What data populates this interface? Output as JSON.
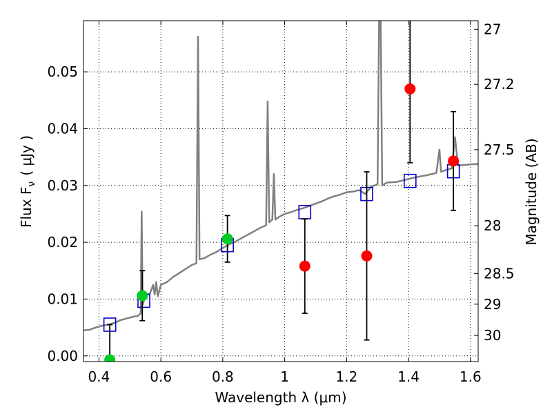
{
  "chart_data": {
    "type": "scatter",
    "xlabel": "Wavelength  λ (μm)",
    "ylabel": "Flux  F",
    "ylabel_sub": "ν",
    "ylabel_unit": "( μJy )",
    "y2label": "Magnitude (AB)",
    "xlim": [
      0.35,
      1.625
    ],
    "ylim": [
      -0.001,
      0.059
    ],
    "grid": true,
    "x_ticks": [
      0.4,
      0.6,
      0.8,
      1.0,
      1.2,
      1.4,
      1.6
    ],
    "x_tick_labels": [
      "0.4",
      "0.6",
      "0.8",
      "1",
      "1.2",
      "1.4",
      "1.6"
    ],
    "y_ticks": [
      0.0,
      0.01,
      0.02,
      0.03,
      0.04,
      0.05
    ],
    "y_tick_labels": [
      "0.00",
      "0.01",
      "0.02",
      "0.03",
      "0.04",
      "0.05"
    ],
    "y2_ticks": [
      {
        "label": "27",
        "flux": 0.0575
      },
      {
        "label": "27.2",
        "flux": 0.0478
      },
      {
        "label": "27.5",
        "flux": 0.0363
      },
      {
        "label": "28",
        "flux": 0.0229
      },
      {
        "label": "28.5",
        "flux": 0.0145
      },
      {
        "label": "29",
        "flux": 0.0091
      },
      {
        "label": "30",
        "flux": 0.0036
      }
    ],
    "template_spectrum": [
      [
        0.35,
        0.0045
      ],
      [
        0.37,
        0.0046
      ],
      [
        0.39,
        0.005
      ],
      [
        0.41,
        0.0053
      ],
      [
        0.43,
        0.0055
      ],
      [
        0.45,
        0.0058
      ],
      [
        0.47,
        0.0063
      ],
      [
        0.49,
        0.0066
      ],
      [
        0.51,
        0.0069
      ],
      [
        0.525,
        0.007
      ],
      [
        0.535,
        0.0075
      ],
      [
        0.538,
        0.0254
      ],
      [
        0.541,
        0.009
      ],
      [
        0.55,
        0.0105
      ],
      [
        0.565,
        0.011
      ],
      [
        0.575,
        0.0125
      ],
      [
        0.58,
        0.0108
      ],
      [
        0.585,
        0.013
      ],
      [
        0.59,
        0.0105
      ],
      [
        0.6,
        0.0125
      ],
      [
        0.62,
        0.013
      ],
      [
        0.64,
        0.0139
      ],
      [
        0.66,
        0.0146
      ],
      [
        0.68,
        0.0153
      ],
      [
        0.7,
        0.016
      ],
      [
        0.715,
        0.0163
      ],
      [
        0.72,
        0.0562
      ],
      [
        0.725,
        0.017
      ],
      [
        0.74,
        0.0172
      ],
      [
        0.76,
        0.0178
      ],
      [
        0.78,
        0.0183
      ],
      [
        0.8,
        0.019
      ],
      [
        0.82,
        0.0196
      ],
      [
        0.84,
        0.0201
      ],
      [
        0.86,
        0.0207
      ],
      [
        0.88,
        0.0213
      ],
      [
        0.9,
        0.0219
      ],
      [
        0.92,
        0.0225
      ],
      [
        0.94,
        0.023
      ],
      [
        0.945,
        0.0448
      ],
      [
        0.95,
        0.0235
      ],
      [
        0.96,
        0.024
      ],
      [
        0.965,
        0.032
      ],
      [
        0.97,
        0.024
      ],
      [
        0.98,
        0.0244
      ],
      [
        1.0,
        0.025
      ],
      [
        1.02,
        0.0253
      ],
      [
        1.04,
        0.0257
      ],
      [
        1.06,
        0.026
      ],
      [
        1.08,
        0.0264
      ],
      [
        1.1,
        0.0268
      ],
      [
        1.12,
        0.0272
      ],
      [
        1.14,
        0.0277
      ],
      [
        1.16,
        0.0281
      ],
      [
        1.18,
        0.0284
      ],
      [
        1.2,
        0.0288
      ],
      [
        1.22,
        0.0289
      ],
      [
        1.24,
        0.0292
      ],
      [
        1.26,
        0.0285
      ],
      [
        1.28,
        0.0298
      ],
      [
        1.3,
        0.0302
      ],
      [
        1.305,
        0.059
      ],
      [
        1.31,
        0.059
      ],
      [
        1.315,
        0.03
      ],
      [
        1.33,
        0.0305
      ],
      [
        1.36,
        0.0306
      ],
      [
        1.39,
        0.031
      ],
      [
        1.42,
        0.0314
      ],
      [
        1.46,
        0.0318
      ],
      [
        1.49,
        0.0322
      ],
      [
        1.5,
        0.0363
      ],
      [
        1.505,
        0.0324
      ],
      [
        1.52,
        0.0327
      ],
      [
        1.54,
        0.033
      ],
      [
        1.55,
        0.0385
      ],
      [
        1.56,
        0.0335
      ],
      [
        1.58,
        0.0336
      ],
      [
        1.6,
        0.0337
      ],
      [
        1.625,
        0.0338
      ]
    ],
    "series": [
      {
        "marker": "open-square",
        "color": "#0000cc",
        "points": [
          [
            0.435,
            0.0055
          ],
          [
            0.545,
            0.0097
          ],
          [
            0.815,
            0.0195
          ],
          [
            1.065,
            0.0253
          ],
          [
            1.265,
            0.0285
          ],
          [
            1.405,
            0.0308
          ],
          [
            1.545,
            0.0325
          ]
        ]
      },
      {
        "marker": "filled-circle",
        "color": "#00cc22",
        "points": [
          {
            "x": 0.435,
            "y": -0.0007,
            "err_low": 0.0062,
            "err_high": 0.0062
          },
          {
            "x": 0.54,
            "y": 0.0106,
            "err_low": 0.0044,
            "err_high": 0.0044
          },
          {
            "x": 0.815,
            "y": 0.0206,
            "err_low": 0.0041,
            "err_high": 0.0041
          }
        ]
      },
      {
        "marker": "filled-circle",
        "color": "#ff0000",
        "points": [
          {
            "x": 1.065,
            "y": 0.0158,
            "err_low": 0.0083,
            "err_high": 0.0083
          },
          {
            "x": 1.265,
            "y": 0.0176,
            "err_low": 0.0148,
            "err_high": 0.0148
          },
          {
            "x": 1.405,
            "y": 0.047,
            "err_low": 0.013,
            "err_high": 0.013
          },
          {
            "x": 1.545,
            "y": 0.0343,
            "err_low": 0.0087,
            "err_high": 0.0087
          }
        ]
      }
    ],
    "colors": {
      "template": "#808080",
      "grid": "#000000",
      "errorbar": "#000000"
    }
  }
}
